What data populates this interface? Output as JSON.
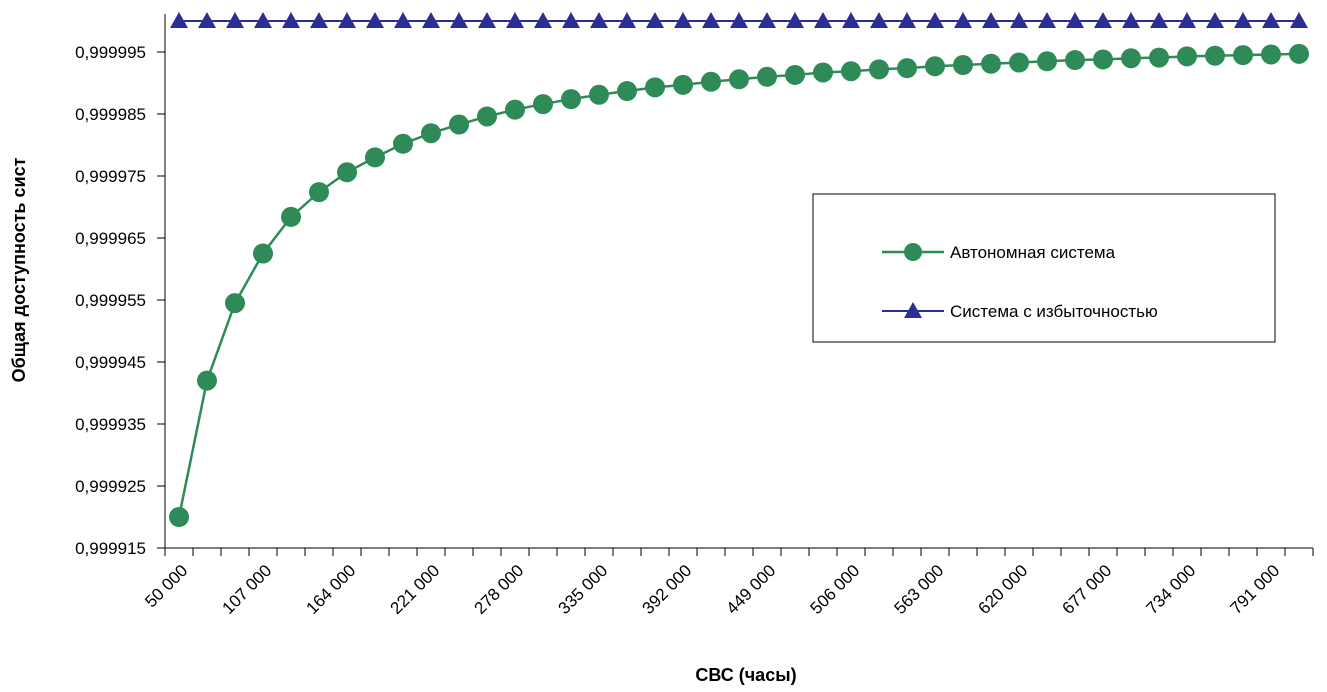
{
  "chart_data": {
    "type": "line",
    "title": "",
    "xlabel": "СВС (часы)",
    "ylabel": "Общая доступность сист",
    "x": [
      50000,
      69000,
      88000,
      107000,
      126000,
      145000,
      164000,
      183000,
      202000,
      221000,
      240000,
      259000,
      278000,
      297000,
      316000,
      335000,
      354000,
      373000,
      392000,
      411000,
      430000,
      449000,
      468000,
      487000,
      506000,
      525000,
      544000,
      563000,
      582000,
      601000,
      620000,
      639000,
      658000,
      677000,
      696000,
      715000,
      734000,
      753000,
      772000,
      791000,
      810000
    ],
    "x_tick_labels": [
      "50 000",
      "107 000",
      "164 000",
      "221 000",
      "278 000",
      "335 000",
      "392 000",
      "449 000",
      "506 000",
      "563 000",
      "620 000",
      "677 000",
      "734 000",
      "791 000"
    ],
    "y_tick_labels": [
      "0,999915",
      "0,999925",
      "0,999935",
      "0,999945",
      "0,999955",
      "0,999965",
      "0,999975",
      "0,999985",
      "0,999995"
    ],
    "ylim": [
      0.999915,
      1.0
    ],
    "series": [
      {
        "name": "Автономная система",
        "color": "#2E8B57",
        "marker": "circle",
        "values": [
          0.99992,
          0.999942,
          0.9999545,
          0.9999625,
          0.9999684,
          0.9999724,
          0.9999756,
          0.999978,
          0.9999802,
          0.9999819,
          0.9999833,
          0.9999846,
          0.9999857,
          0.9999866,
          0.9999874,
          0.9999881,
          0.9999887,
          0.9999893,
          0.9999897,
          0.9999902,
          0.9999906,
          0.999991,
          0.9999913,
          0.9999917,
          0.9999919,
          0.9999922,
          0.9999924,
          0.9999927,
          0.9999929,
          0.9999931,
          0.9999933,
          0.9999935,
          0.9999937,
          0.9999938,
          0.999994,
          0.9999941,
          0.9999943,
          0.9999944,
          0.9999945,
          0.9999946,
          0.9999947
        ]
      },
      {
        "name": "Система с избыточностью",
        "color": "#2B2F94",
        "marker": "triangle",
        "values": [
          0.99999999,
          0.99999999,
          0.99999999,
          0.99999999,
          0.99999999,
          0.99999999,
          0.99999999,
          0.99999999,
          0.99999999,
          0.99999999,
          0.99999999,
          0.99999999,
          0.99999999,
          0.99999999,
          0.99999999,
          0.99999999,
          0.99999999,
          0.99999999,
          0.99999999,
          0.99999999,
          0.99999999,
          0.99999999,
          0.99999999,
          0.99999999,
          0.99999999,
          0.99999999,
          0.99999999,
          0.99999999,
          0.99999999,
          0.99999999,
          0.99999999,
          0.99999999,
          0.99999999,
          0.99999999,
          0.99999999,
          0.99999999,
          0.99999999,
          0.99999999,
          0.99999999,
          0.99999999,
          0.99999999
        ]
      }
    ],
    "grid": false,
    "legend_position": "right"
  }
}
